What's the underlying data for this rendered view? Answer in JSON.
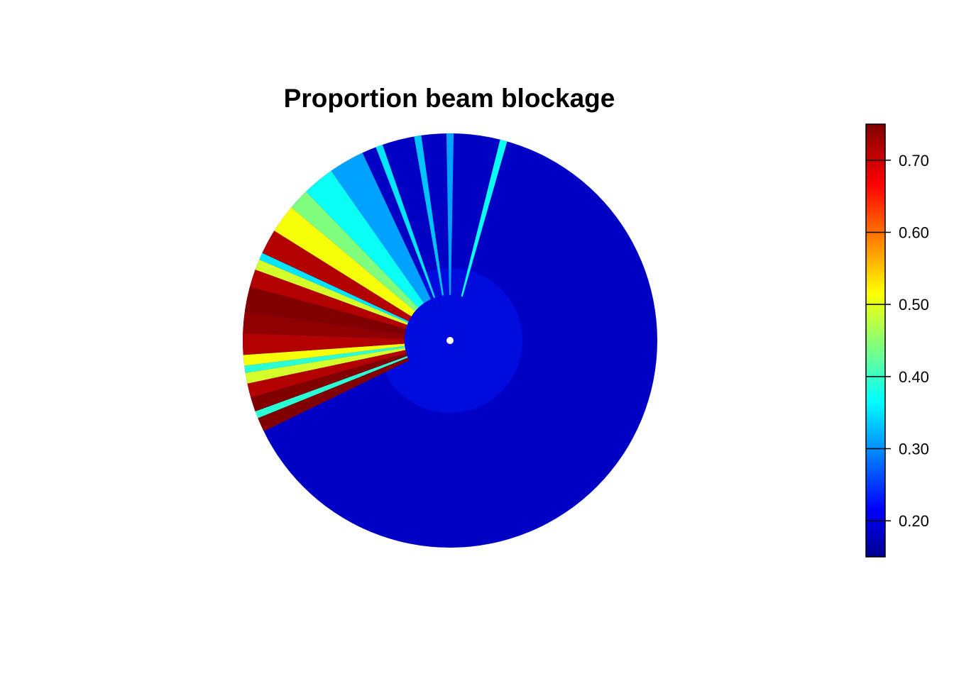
{
  "chart_data": {
    "type": "heatmap",
    "title": "Proportion beam blockage",
    "projection": "polar",
    "colormap": "jet",
    "colorbar": {
      "range": [
        0.15,
        0.75
      ],
      "ticks": [
        0.2,
        0.3,
        0.4,
        0.5,
        0.6,
        0.7
      ],
      "tick_labels": [
        "0.20",
        "0.30",
        "0.40",
        "0.50",
        "0.60",
        "0.70"
      ]
    },
    "background_value": 0.19,
    "near_radar_value": 0.24,
    "sectors": [
      {
        "azimuth_start": 244,
        "azimuth_end": 248,
        "value": 0.75
      },
      {
        "azimuth_start": 248,
        "azimuth_end": 250,
        "value": 0.4
      },
      {
        "azimuth_start": 250,
        "azimuth_end": 254,
        "value": 0.75
      },
      {
        "azimuth_start": 254,
        "azimuth_end": 258,
        "value": 0.72
      },
      {
        "azimuth_start": 258,
        "azimuth_end": 261,
        "value": 0.5
      },
      {
        "azimuth_start": 261,
        "azimuth_end": 263,
        "value": 0.4
      },
      {
        "azimuth_start": 263,
        "azimuth_end": 266,
        "value": 0.52
      },
      {
        "azimuth_start": 266,
        "azimuth_end": 272,
        "value": 0.72
      },
      {
        "azimuth_start": 272,
        "azimuth_end": 278,
        "value": 0.74
      },
      {
        "azimuth_start": 278,
        "azimuth_end": 285,
        "value": 0.75
      },
      {
        "azimuth_start": 285,
        "azimuth_end": 290,
        "value": 0.72
      },
      {
        "azimuth_start": 290,
        "azimuth_end": 293,
        "value": 0.5
      },
      {
        "azimuth_start": 293,
        "azimuth_end": 295,
        "value": 0.36
      },
      {
        "azimuth_start": 295,
        "azimuth_end": 302,
        "value": 0.72
      },
      {
        "azimuth_start": 302,
        "azimuth_end": 310,
        "value": 0.52
      },
      {
        "azimuth_start": 310,
        "azimuth_end": 316,
        "value": 0.45
      },
      {
        "azimuth_start": 316,
        "azimuth_end": 325,
        "value": 0.38
      },
      {
        "azimuth_start": 325,
        "azimuth_end": 335,
        "value": 0.32
      },
      {
        "azimuth_start": 339,
        "azimuth_end": 341,
        "value": 0.36
      },
      {
        "azimuth_start": 350,
        "azimuth_end": 352,
        "value": 0.34
      },
      {
        "azimuth_start": 359,
        "azimuth_end": 361,
        "value": 0.32
      },
      {
        "azimuth_start": 14,
        "azimuth_end": 16,
        "value": 0.38
      }
    ]
  }
}
